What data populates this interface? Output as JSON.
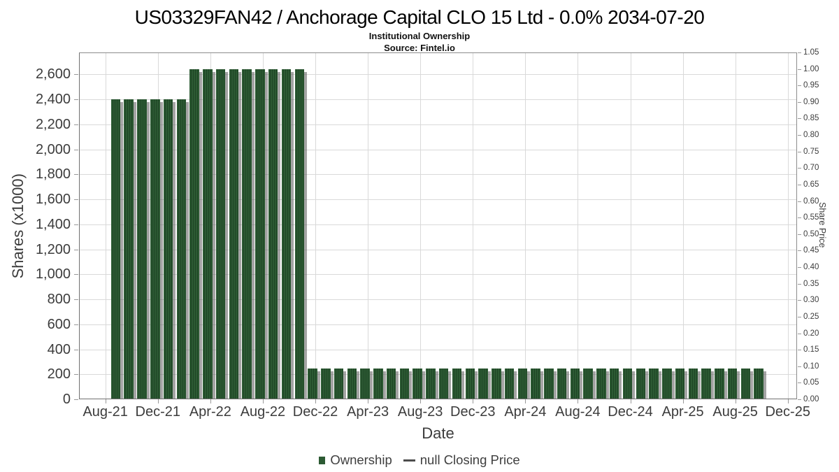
{
  "header": {
    "title": "US03329FAN42 / Anchorage Capital CLO 15 Ltd - 0.0% 2034-07-20",
    "subtitle": "Institutional Ownership",
    "source": "Source: Fintel.io"
  },
  "legend": {
    "ownership_label": "Ownership",
    "price_label": "null Closing Price"
  },
  "chart_data": {
    "type": "bar",
    "title": "US03329FAN42 / Anchorage Capital CLO 15 Ltd - 0.0% 2034-07-20",
    "subtitle": "Institutional Ownership",
    "source": "Source: Fintel.io",
    "xlabel": "Date",
    "ylabel": "Shares (x1000)",
    "y2label": "Share Price",
    "legend_position": "bottom",
    "grid": "on",
    "x_tick_labels": [
      "Aug-21",
      "Dec-21",
      "Apr-22",
      "Aug-22",
      "Dec-22",
      "Apr-23",
      "Aug-23",
      "Dec-23",
      "Apr-24",
      "Aug-24",
      "Dec-24",
      "Apr-25",
      "Aug-25",
      "Dec-25"
    ],
    "y_left_tick_labels": [
      "0",
      "200",
      "400",
      "600",
      "800",
      "1,000",
      "1,200",
      "1,400",
      "1,600",
      "1,800",
      "2,000",
      "2,200",
      "2,400",
      "2,600"
    ],
    "y_left_tick_step": 200,
    "y_left_max": 2775,
    "y_right_tick_labels": [
      "0.00",
      "0.05",
      "0.10",
      "0.15",
      "0.20",
      "0.25",
      "0.30",
      "0.35",
      "0.40",
      "0.45",
      "0.50",
      "0.55",
      "0.60",
      "0.65",
      "0.70",
      "0.75",
      "0.80",
      "0.85",
      "0.90",
      "0.95",
      "1.00",
      "1.05"
    ],
    "y_right_tick_step": 0.05,
    "y_right_max": 1.05,
    "categories": [
      "Sep-21",
      "Oct-21",
      "Nov-21",
      "Dec-21",
      "Jan-22",
      "Feb-22",
      "Mar-22",
      "Apr-22",
      "May-22",
      "Jun-22",
      "Jul-22",
      "Aug-22",
      "Sep-22",
      "Oct-22",
      "Nov-22",
      "Dec-22",
      "Jan-23",
      "Feb-23",
      "Mar-23",
      "Apr-23",
      "May-23",
      "Jun-23",
      "Jul-23",
      "Aug-23",
      "Sep-23",
      "Oct-23",
      "Nov-23",
      "Dec-23",
      "Jan-24",
      "Feb-24",
      "Mar-24",
      "Apr-24",
      "May-24",
      "Jun-24",
      "Jul-24",
      "Aug-24",
      "Sep-24",
      "Oct-24",
      "Nov-24",
      "Dec-24",
      "Jan-25",
      "Feb-25",
      "Mar-25",
      "Apr-25",
      "May-25",
      "Jun-25",
      "Jul-25",
      "Aug-25",
      "Sep-25",
      "Oct-25"
    ],
    "series": [
      {
        "name": "Ownership",
        "type": "bar",
        "values": [
          2400,
          2400,
          2400,
          2400,
          2400,
          2400,
          2640,
          2640,
          2640,
          2640,
          2640,
          2640,
          2640,
          2640,
          2640,
          245,
          245,
          245,
          245,
          245,
          245,
          245,
          245,
          245,
          245,
          245,
          245,
          245,
          245,
          245,
          245,
          245,
          245,
          245,
          245,
          245,
          245,
          245,
          245,
          245,
          245,
          245,
          245,
          245,
          245,
          245,
          245,
          245,
          245,
          245
        ]
      },
      {
        "name": "null Closing Price",
        "type": "line",
        "values": []
      }
    ],
    "colors": {
      "bar": "#2c5a33",
      "bar_stripe": "#1e4425",
      "shadow": "rgba(90,90,90,0.55)",
      "grid": "#d9d9d9",
      "tick": "#999999",
      "border": "#8c8c8c",
      "axis_line": "#707070",
      "text": "#3c3c3c"
    }
  }
}
